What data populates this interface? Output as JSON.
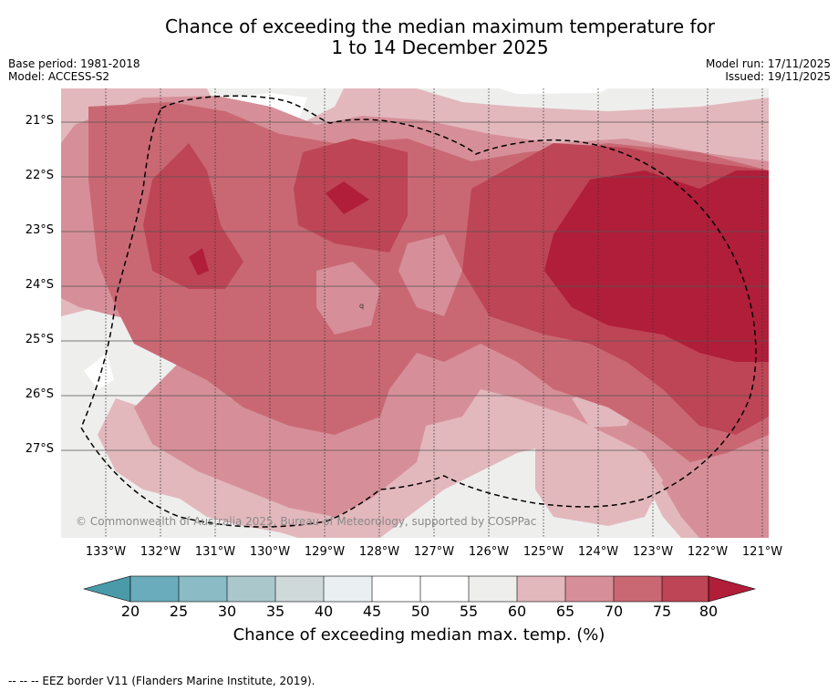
{
  "title": {
    "line1": "Chance of exceeding the median maximum temperature for",
    "line2": "1 to 14 December 2025"
  },
  "meta": {
    "base_period": "Base period: 1981-2018",
    "model": "Model: ACCESS-S2",
    "model_run": "Model run: 17/11/2025",
    "issued": "Issued: 19/11/2025"
  },
  "map": {
    "copyright": "© Commonwealth of Australia 2025, Bureau of Meteorology, supported by COSPPac",
    "lat_labels": [
      "21°S",
      "22°S",
      "23°S",
      "24°S",
      "25°S",
      "26°S",
      "27°S"
    ],
    "lon_labels": [
      "133°W",
      "132°W",
      "131°W",
      "130°W",
      "129°W",
      "128°W",
      "127°W",
      "126°W",
      "125°W",
      "124°W",
      "123°W",
      "122°W",
      "121°W"
    ],
    "small_label": "q"
  },
  "colorbar": {
    "ticks": [
      "20",
      "25",
      "30",
      "35",
      "40",
      "45",
      "50",
      "55",
      "60",
      "65",
      "70",
      "75",
      "80"
    ],
    "label": "Chance of exceeding median max. temp. (%)",
    "colors": {
      "below20": "#4a9aaa",
      "c20_25": "#6aacbb",
      "c25_30": "#8bbbc5",
      "c30_35": "#aac8cc",
      "c35_40": "#d0d9da",
      "c40_45": "#eaf0f2",
      "c45_50": "#ffffff",
      "c50_55": "#ffffff",
      "c55_60": "#eeeeed",
      "c60_65": "#e2b8bd",
      "c65_70": "#d68f98",
      "c70_75": "#c96873",
      "c75_80": "#be4555",
      "above80": "#b01e3a"
    }
  },
  "footnote": "--  --  -- EEZ border V11 (Flanders Marine Institute, 2019)."
}
